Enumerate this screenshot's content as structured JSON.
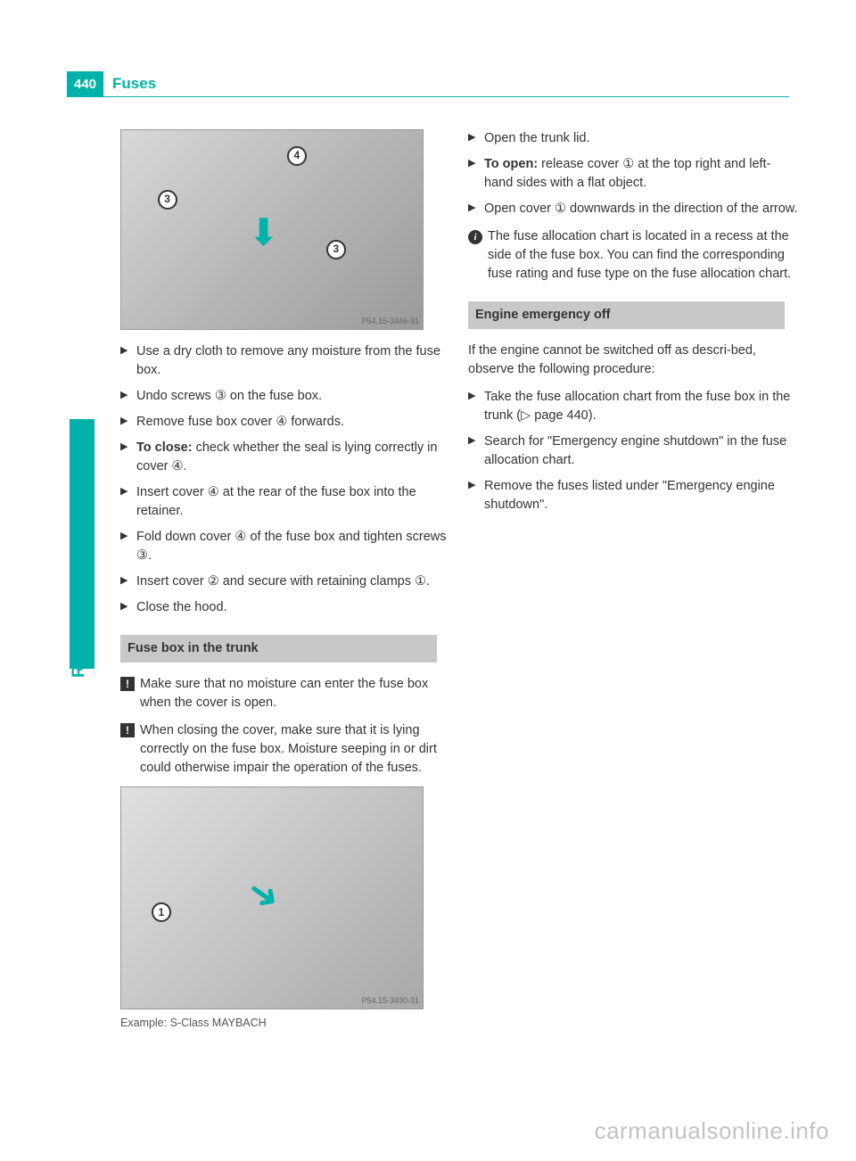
{
  "page": {
    "number": "440",
    "title": "Fuses",
    "side_label": "Roadside Assistance",
    "watermark": "carmanualsonline.info",
    "colors": {
      "accent": "#00b2a9",
      "section_bg": "#c8c8c8",
      "text": "#333333"
    }
  },
  "figure1": {
    "ref": "P54.15-3446-31",
    "callouts": {
      "a": "4",
      "b": "3",
      "c": "3"
    }
  },
  "left_steps": [
    "Use a dry cloth to remove any moisture from the fuse box.",
    "Undo screws ③ on the fuse box.",
    "Remove fuse box cover ④ forwards.",
    "<b>To close:</b> check whether the seal is lying correctly in cover ④.",
    "Insert cover ④ at the rear of the fuse box into the retainer.",
    "Fold down cover ④ of the fuse box and tighten screws ③.",
    "Insert cover ② and secure with retaining clamps ①.",
    "Close the hood."
  ],
  "section1": {
    "title": "Fuse box in the trunk",
    "notes": [
      "Make sure that no moisture can enter the fuse box when the cover is open.",
      "When closing the cover, make sure that it is lying correctly on the fuse box. Moisture seeping in or dirt could otherwise impair the operation of the fuses."
    ]
  },
  "figure2": {
    "ref": "P54.15-3430-31",
    "caption": "Example: S-Class MAYBACH",
    "callouts": {
      "a": "1"
    }
  },
  "right_steps_a": [
    "Open the trunk lid.",
    "<b>To open:</b> release cover ① at the top right and left-hand sides with a flat object.",
    "Open cover ① downwards in the direction of the arrow."
  ],
  "info_note": "The fuse allocation chart is located in a recess at the side of the fuse box. You can find the corresponding fuse rating and fuse type on the fuse allocation chart.",
  "section2": {
    "title": "Engine emergency off",
    "intro": "If the engine cannot be switched off as descri-bed, observe the following procedure:",
    "steps": [
      "Take the fuse allocation chart from the fuse box in the trunk (▷ page 440).",
      "Search for \"Emergency engine shutdown\" in the fuse allocation chart.",
      "Remove the fuses listed under \"Emergency engine shutdown\"."
    ]
  }
}
